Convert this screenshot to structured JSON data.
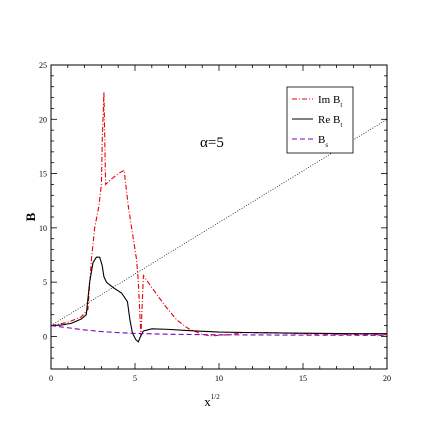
{
  "chart_data": {
    "type": "line",
    "xlabel": "x",
    "xlabel_sup": "1/2",
    "ylabel": "B",
    "xlim": [
      0,
      20
    ],
    "ylim": [
      -3,
      25
    ],
    "grid": false,
    "x_ticks": [
      0,
      5,
      10,
      15,
      20
    ],
    "y_ticks": [
      0,
      5,
      10,
      15,
      20,
      25
    ],
    "legend_placement": "top-right",
    "annotation": "α=5",
    "series": [
      {
        "name": "Im B",
        "subscript": "t",
        "color": "#e8000b",
        "style": "dash-dot",
        "points": [
          [
            0,
            1
          ],
          [
            1,
            1.3
          ],
          [
            1.8,
            1.8
          ],
          [
            2.2,
            2.5
          ],
          [
            2.4,
            7
          ],
          [
            2.6,
            10
          ],
          [
            2.85,
            12
          ],
          [
            3.0,
            14
          ],
          [
            3.05,
            18
          ],
          [
            3.15,
            22.5
          ],
          [
            3.25,
            14
          ],
          [
            3.6,
            14.5
          ],
          [
            4.0,
            15
          ],
          [
            4.35,
            15.3
          ],
          [
            4.6,
            12
          ],
          [
            4.9,
            9
          ],
          [
            5.1,
            7
          ],
          [
            5.2,
            5
          ],
          [
            5.35,
            0
          ],
          [
            5.5,
            5.6
          ],
          [
            6.0,
            4.5
          ],
          [
            6.8,
            2.8
          ],
          [
            7.5,
            1.5
          ],
          [
            8.2,
            0.7
          ],
          [
            9.0,
            0.2
          ],
          [
            9.5,
            0.05
          ],
          [
            10.5,
            0.15
          ],
          [
            11.5,
            0.35
          ],
          [
            13,
            0.35
          ],
          [
            15,
            0.25
          ],
          [
            17,
            0.2
          ],
          [
            20,
            0.15
          ]
        ]
      },
      {
        "name": "Re B",
        "subscript": "t",
        "color": "#000000",
        "style": "solid",
        "points": [
          [
            0,
            1
          ],
          [
            0.6,
            1.05
          ],
          [
            1.2,
            1.2
          ],
          [
            1.8,
            1.6
          ],
          [
            2.1,
            2.0
          ],
          [
            2.3,
            5
          ],
          [
            2.5,
            6.8
          ],
          [
            2.7,
            7.3
          ],
          [
            2.9,
            7.3
          ],
          [
            3.05,
            6.5
          ],
          [
            3.15,
            5.5
          ],
          [
            3.3,
            5.0
          ],
          [
            3.7,
            4.5
          ],
          [
            4.2,
            4.0
          ],
          [
            4.55,
            3.2
          ],
          [
            4.7,
            1.5
          ],
          [
            4.85,
            0.3
          ],
          [
            5.05,
            -0.3
          ],
          [
            5.2,
            -0.5
          ],
          [
            5.3,
            -0.1
          ],
          [
            5.5,
            0.5
          ],
          [
            6.0,
            0.7
          ],
          [
            7.0,
            0.65
          ],
          [
            8.0,
            0.55
          ],
          [
            10,
            0.4
          ],
          [
            12,
            0.35
          ],
          [
            15,
            0.3
          ],
          [
            18,
            0.25
          ],
          [
            20,
            0.25
          ]
        ]
      },
      {
        "name": "B",
        "subscript": "s",
        "color": "#7b00c8",
        "style": "dashed",
        "points": [
          [
            0,
            1
          ],
          [
            0.5,
            0.9
          ],
          [
            1,
            0.8
          ],
          [
            2,
            0.6
          ],
          [
            3,
            0.45
          ],
          [
            4,
            0.35
          ],
          [
            5,
            0.28
          ],
          [
            7,
            0.2
          ],
          [
            10,
            0.15
          ],
          [
            15,
            0.12
          ],
          [
            20,
            0.1
          ]
        ]
      },
      {
        "name": "",
        "color": "#000000",
        "style": "dotted",
        "points": [
          [
            0,
            1
          ],
          [
            20,
            20
          ]
        ]
      }
    ]
  }
}
